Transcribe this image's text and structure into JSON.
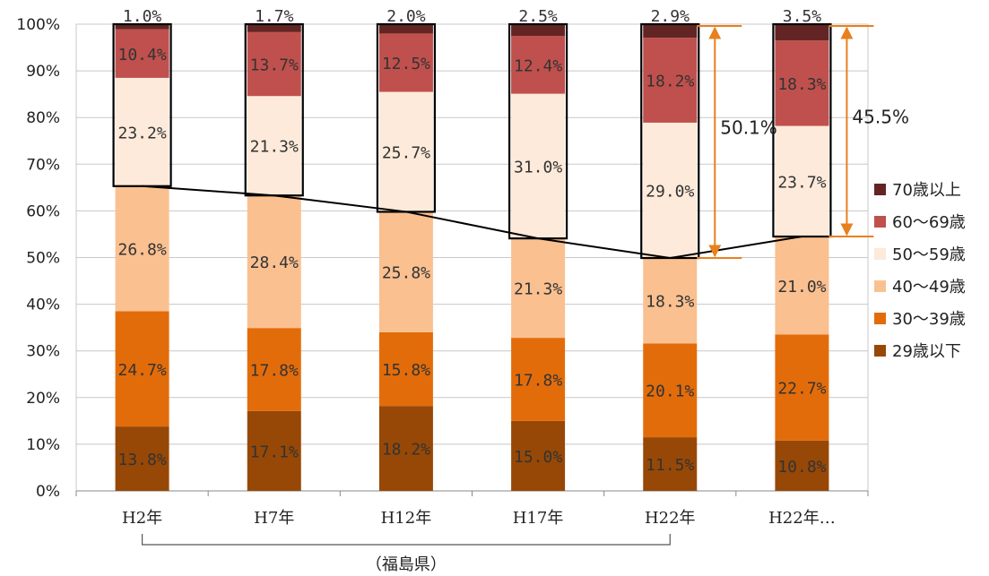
{
  "chart_data": {
    "type": "bar",
    "stacked": true,
    "categories": [
      "H2年",
      "H7年",
      "H12年",
      "H17年",
      "H22年",
      "H22年…"
    ],
    "ylim": [
      0,
      100
    ],
    "yticks": [
      "0%",
      "10%",
      "20%",
      "30%",
      "40%",
      "50%",
      "60%",
      "70%",
      "80%",
      "90%",
      "100%"
    ],
    "grid": "horizontal",
    "legend_position": "right",
    "series": [
      {
        "name": "29歳以下",
        "color": "#974806",
        "values": [
          13.8,
          17.1,
          18.2,
          15.0,
          11.5,
          10.8
        ],
        "labels": [
          "13.8%",
          "17.1%",
          "18.2%",
          "15.0%",
          "11.5%",
          "10.8%"
        ]
      },
      {
        "name": "30～39歳",
        "color": "#E36C0A",
        "values": [
          24.7,
          17.8,
          15.8,
          17.8,
          20.1,
          22.7
        ],
        "labels": [
          "24.7%",
          "17.8%",
          "15.8%",
          "17.8%",
          "20.1%",
          "22.7%"
        ]
      },
      {
        "name": "40～49歳",
        "color": "#FAC090",
        "values": [
          26.8,
          28.4,
          25.8,
          21.3,
          18.3,
          21.0
        ],
        "labels": [
          "26.8%",
          "28.4%",
          "25.8%",
          "21.3%",
          "18.3%",
          "21.0%"
        ]
      },
      {
        "name": "50～59歳",
        "color": "#FDEADA",
        "values": [
          23.2,
          21.3,
          25.7,
          31.0,
          29.0,
          23.7
        ],
        "labels": [
          "23.2%",
          "21.3%",
          "25.7%",
          "31.0%",
          "29.0%",
          "23.7%"
        ]
      },
      {
        "name": "60～69歳",
        "color": "#C0504D",
        "values": [
          10.4,
          13.7,
          12.5,
          12.4,
          18.2,
          18.3
        ],
        "labels": [
          "10.4%",
          "13.7%",
          "12.5%",
          "12.4%",
          "18.2%",
          "18.3%"
        ]
      },
      {
        "name": "70歳以上",
        "color": "#632523",
        "values": [
          1.0,
          1.7,
          2.0,
          2.5,
          2.9,
          3.5
        ],
        "labels": [
          "1.0%",
          "1.7%",
          "2.0%",
          "2.5%",
          "2.9%",
          "3.5%"
        ]
      }
    ],
    "annotations": [
      {
        "text": "50.1%",
        "category": "H22年",
        "from": 49.9,
        "to": 100
      },
      {
        "text": "45.5%",
        "category": "H22年…",
        "from": 54.5,
        "to": 100
      }
    ],
    "group_label": "（福島県）"
  }
}
